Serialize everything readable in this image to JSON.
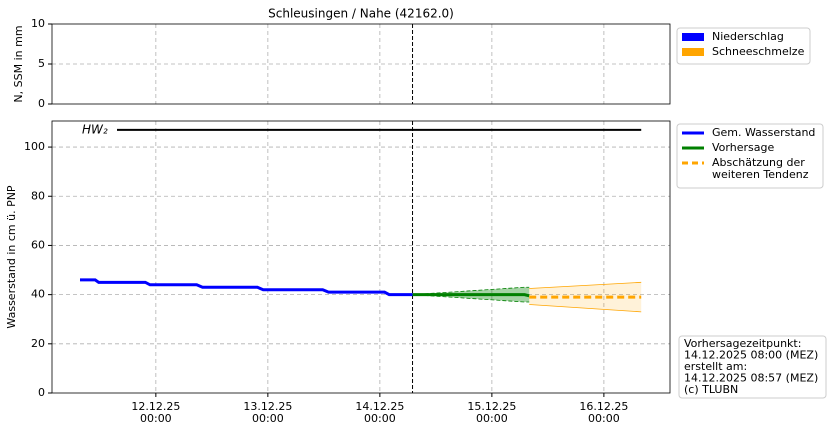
{
  "chart_data": [
    {
      "type": "bar",
      "title": "Schleusingen / Nahe (42162.0)",
      "y_label": "N, SSM in mm",
      "ylim": [
        0,
        10
      ],
      "yticks": [
        0,
        5,
        10
      ],
      "grid": true,
      "series": [
        {
          "name": "Niederschlag",
          "color": "#0000ff",
          "x": [],
          "values": []
        },
        {
          "name": "Schneeschmelze",
          "color": "#ffa500",
          "x": [],
          "values": []
        }
      ]
    },
    {
      "type": "line",
      "y_label": "Wasserstand in cm ü. PNP",
      "xlim": [
        "11.12.25 01:45",
        "16.12.25 14:10"
      ],
      "xticks": [
        {
          "value": "12.12.25 00:00",
          "label": "12.12.25\n00:00"
        },
        {
          "value": "13.12.25 00:00",
          "label": "13.12.25\n00:00"
        },
        {
          "value": "14.12.25 00:00",
          "label": "14.12.25\n00:00"
        },
        {
          "value": "15.12.25 00:00",
          "label": "15.12.25\n00:00"
        },
        {
          "value": "16.12.25 00:00",
          "label": "16.12.25\n00:00"
        }
      ],
      "ylim": [
        0,
        110.6
      ],
      "yticks": [
        0,
        20,
        40,
        60,
        80,
        100
      ],
      "grid": true,
      "now": "14.12.25 07:00",
      "threshold": {
        "label": "HW₂",
        "value": 107,
        "x": [
          "11.12.25 07:45",
          "16.12.25 08:00"
        ],
        "color": "#000000"
      },
      "series": [
        {
          "name": "Gem. Wasserstand",
          "color": "#0000ff",
          "style": "solid",
          "x": [
            "11.12.25 07:45",
            "11.12.25 11:00",
            "11.12.25 11:45",
            "11.12.25 21:45",
            "11.12.25 22:45",
            "12.12.25 08:45",
            "12.12.25 10:00",
            "12.12.25 21:45",
            "12.12.25 23:00",
            "13.12.25 11:45",
            "13.12.25 13:00",
            "14.12.25 01:00",
            "14.12.25 02:00",
            "14.12.25 07:00"
          ],
          "values": [
            46,
            46,
            45,
            45,
            44,
            44,
            43,
            43,
            42,
            42,
            41,
            41,
            40,
            40
          ]
        },
        {
          "name": "Vorhersage",
          "color": "#008000",
          "style": "solid",
          "x": [
            "14.12.25 07:00",
            "15.12.25 07:00",
            "15.12.25 08:00"
          ],
          "values": [
            40,
            40,
            39.5
          ],
          "lower": [
            40,
            37,
            37
          ],
          "upper": [
            40,
            43,
            43
          ]
        },
        {
          "name": "Abschätzung der\nweiteren Tendenz",
          "color": "#ffa500",
          "style": "dashed",
          "x": [
            "15.12.25 08:00",
            "16.12.25 08:00"
          ],
          "values": [
            39,
            39
          ],
          "lower": [
            36,
            33
          ],
          "upper": [
            42.5,
            45
          ]
        }
      ],
      "note": [
        "Vorhersagezeitpunkt:",
        "14.12.2025 08:00 (MEZ)",
        "erstellt am:",
        "14.12.2025 08:57 (MEZ)",
        "(c) TLUBN"
      ]
    }
  ]
}
